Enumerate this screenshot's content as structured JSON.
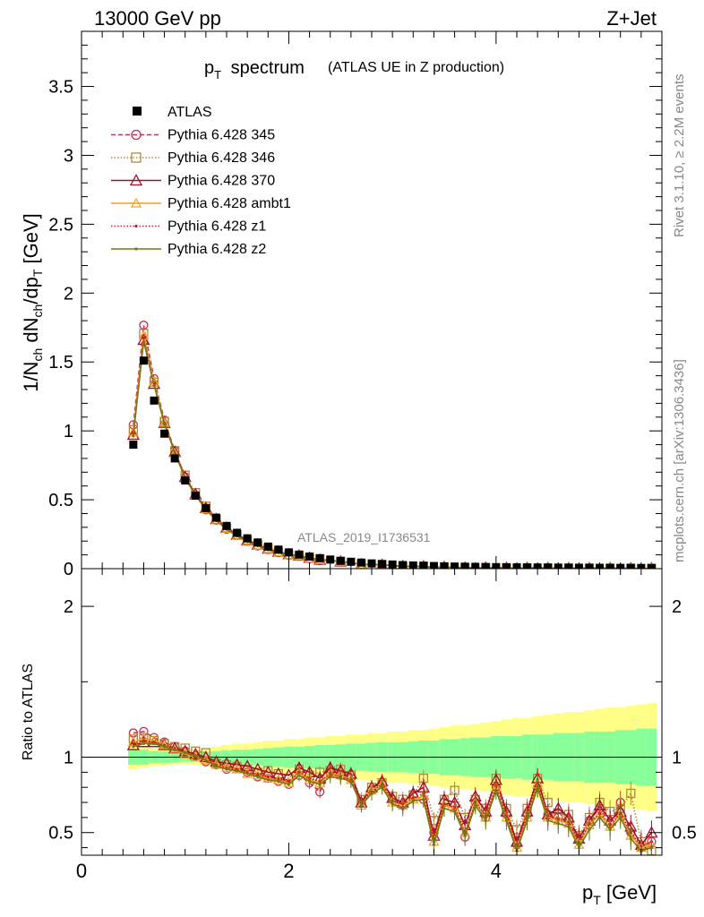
{
  "header": {
    "left": "13000 GeV pp",
    "right": "Z+Jet"
  },
  "side": {
    "top": "Rivet 3.1.10, ≥ 2.2M events",
    "bottom": "mcplots.cern.ch [arXiv:1306.3436]"
  },
  "chart_data": {
    "type": "line",
    "title": "p_T spectrum",
    "title_sub": "(ATLAS UE in Z production)",
    "watermark": "ATLAS_2019_I1736531",
    "xlabel": "p_T [GeV]",
    "ylabel": "1/N_ch dN_ch/dp_T [GeV]",
    "ratio_ylabel": "Ratio to ATLAS",
    "xlim": [
      0,
      5.6
    ],
    "ylim": [
      0,
      3.9
    ],
    "ratio_ylim": [
      0.35,
      2.25
    ],
    "x_ticks": [
      "0",
      "2",
      "4"
    ],
    "y_ticks": [
      "0",
      "0.5",
      "1",
      "1.5",
      "2",
      "2.5",
      "3",
      "3.5"
    ],
    "ratio_ticks": [
      "0.5",
      "1",
      "2"
    ],
    "x": [
      0.5,
      0.6,
      0.7,
      0.8,
      0.9,
      1.0,
      1.1,
      1.2,
      1.3,
      1.4,
      1.5,
      1.6,
      1.7,
      1.8,
      1.9,
      2.0,
      2.1,
      2.2,
      2.3,
      2.4,
      2.5,
      2.6,
      2.7,
      2.8,
      2.9,
      3.0,
      3.1,
      3.2,
      3.3,
      3.4,
      3.5,
      3.6,
      3.7,
      3.8,
      3.9,
      4.0,
      4.1,
      4.2,
      4.3,
      4.4,
      4.5,
      4.6,
      4.7,
      4.8,
      4.9,
      5.0,
      5.1,
      5.2,
      5.3,
      5.4,
      5.5
    ],
    "data": {
      "name": "ATLAS",
      "values": [
        0.9,
        1.51,
        1.22,
        0.98,
        0.8,
        0.64,
        0.53,
        0.44,
        0.37,
        0.31,
        0.26,
        0.22,
        0.19,
        0.16,
        0.138,
        0.118,
        0.102,
        0.088,
        0.076,
        0.066,
        0.057,
        0.05,
        0.044,
        0.038,
        0.034,
        0.03,
        0.026,
        0.023,
        0.021,
        0.019,
        0.017,
        0.015,
        0.014,
        0.013,
        0.012,
        0.011,
        0.01,
        0.0095,
        0.009,
        0.0085,
        0.008,
        0.0076,
        0.0072,
        0.0068,
        0.0065,
        0.0062,
        0.0059,
        0.0056,
        0.0053,
        0.005,
        0.0048
      ],
      "ratio_band_inner": [
        0.05,
        0.05,
        0.04,
        0.04,
        0.035,
        0.03,
        0.03,
        0.035,
        0.04,
        0.045,
        0.05,
        0.05,
        0.055,
        0.06,
        0.065,
        0.07,
        0.07,
        0.075,
        0.08,
        0.08,
        0.085,
        0.09,
        0.09,
        0.095,
        0.1,
        0.1,
        0.1,
        0.105,
        0.11,
        0.11,
        0.12,
        0.12,
        0.125,
        0.13,
        0.13,
        0.14,
        0.14,
        0.14,
        0.15,
        0.15,
        0.15,
        0.16,
        0.16,
        0.16,
        0.17,
        0.17,
        0.17,
        0.18,
        0.18,
        0.19,
        0.19
      ],
      "ratio_band_outer": [
        0.08,
        0.07,
        0.06,
        0.055,
        0.05,
        0.045,
        0.05,
        0.06,
        0.07,
        0.08,
        0.09,
        0.09,
        0.1,
        0.11,
        0.11,
        0.12,
        0.12,
        0.13,
        0.13,
        0.14,
        0.14,
        0.15,
        0.15,
        0.16,
        0.16,
        0.17,
        0.17,
        0.18,
        0.18,
        0.19,
        0.2,
        0.21,
        0.21,
        0.22,
        0.23,
        0.24,
        0.25,
        0.26,
        0.26,
        0.27,
        0.28,
        0.29,
        0.3,
        0.3,
        0.31,
        0.32,
        0.33,
        0.33,
        0.34,
        0.35,
        0.36
      ]
    },
    "series": [
      {
        "name": "Pythia 6.428 345",
        "color": "#c03050",
        "dash": "5,3",
        "marker": "circle",
        "ratio": [
          1.16,
          1.17,
          1.13,
          1.1,
          1.07,
          1.04,
          1.01,
          0.97,
          0.95,
          0.92,
          0.93,
          0.9,
          0.87,
          0.86,
          0.84,
          0.82,
          0.88,
          0.83,
          0.77,
          0.9,
          0.88,
          0.86,
          0.7,
          0.78,
          0.82,
          0.72,
          0.68,
          0.74,
          0.72,
          0.5,
          0.7,
          0.68,
          0.47,
          0.7,
          0.6,
          0.8,
          0.62,
          0.42,
          0.62,
          0.8,
          0.62,
          0.6,
          0.58,
          0.45,
          0.58,
          0.66,
          0.56,
          0.7,
          0.5,
          0.4,
          0.44
        ]
      },
      {
        "name": "Pythia 6.428 346",
        "color": "#b08a3a",
        "dash": "1.5,2",
        "marker": "square",
        "ratio": [
          1.12,
          1.13,
          1.11,
          1.09,
          1.07,
          1.06,
          1.04,
          1.03,
          0.96,
          0.95,
          0.94,
          0.92,
          0.9,
          0.91,
          0.89,
          0.86,
          0.92,
          0.88,
          0.9,
          0.91,
          0.92,
          0.88,
          0.72,
          0.8,
          0.83,
          0.74,
          0.72,
          0.75,
          0.86,
          0.58,
          0.72,
          0.78,
          0.6,
          0.72,
          0.66,
          0.86,
          0.66,
          0.52,
          0.66,
          0.86,
          0.7,
          0.62,
          0.62,
          0.48,
          0.6,
          0.7,
          0.64,
          0.66,
          0.76,
          0.44,
          0.38
        ]
      },
      {
        "name": "Pythia 6.428 370",
        "color": "#a01028",
        "dash": "",
        "marker": "triangle",
        "ratio": [
          1.08,
          1.1,
          1.1,
          1.08,
          1.06,
          1.04,
          1.02,
          1.0,
          0.97,
          0.96,
          0.95,
          0.94,
          0.92,
          0.9,
          0.89,
          0.88,
          0.93,
          0.9,
          0.86,
          0.93,
          0.91,
          0.89,
          0.7,
          0.8,
          0.84,
          0.73,
          0.7,
          0.76,
          0.8,
          0.48,
          0.72,
          0.7,
          0.55,
          0.74,
          0.64,
          0.85,
          0.64,
          0.44,
          0.64,
          0.86,
          0.62,
          0.66,
          0.6,
          0.46,
          0.58,
          0.68,
          0.58,
          0.64,
          0.54,
          0.42,
          0.5
        ]
      },
      {
        "name": "Pythia 6.428 ambt1",
        "color": "#f0a020",
        "dash": "",
        "marker": "triangle-small",
        "ratio": [
          1.1,
          1.12,
          1.11,
          1.08,
          1.05,
          1.02,
          1.0,
          0.98,
          0.95,
          0.93,
          0.92,
          0.89,
          0.88,
          0.86,
          0.85,
          0.83,
          0.9,
          0.85,
          0.83,
          0.89,
          0.88,
          0.85,
          0.68,
          0.78,
          0.82,
          0.7,
          0.68,
          0.72,
          0.74,
          0.44,
          0.68,
          0.66,
          0.5,
          0.7,
          0.6,
          0.8,
          0.6,
          0.4,
          0.6,
          0.82,
          0.6,
          0.58,
          0.56,
          0.42,
          0.55,
          0.62,
          0.54,
          0.62,
          0.48,
          0.4,
          0.42
        ]
      },
      {
        "name": "Pythia 6.428 z1",
        "color": "#d02020",
        "dash": "1.5,2",
        "marker": "dot",
        "ratio": [
          1.09,
          1.11,
          1.1,
          1.08,
          1.05,
          1.03,
          1.0,
          0.98,
          0.95,
          0.93,
          0.92,
          0.9,
          0.88,
          0.87,
          0.85,
          0.84,
          0.9,
          0.86,
          0.84,
          0.89,
          0.87,
          0.85,
          0.7,
          0.77,
          0.82,
          0.71,
          0.69,
          0.73,
          0.76,
          0.46,
          0.69,
          0.67,
          0.5,
          0.7,
          0.61,
          0.81,
          0.61,
          0.42,
          0.61,
          0.83,
          0.61,
          0.59,
          0.57,
          0.43,
          0.56,
          0.63,
          0.55,
          0.63,
          0.5,
          0.41,
          0.44
        ]
      },
      {
        "name": "Pythia 6.428 z2",
        "color": "#707a10",
        "dash": "",
        "marker": "dot",
        "ratio": [
          1.07,
          1.09,
          1.09,
          1.07,
          1.05,
          1.03,
          1.01,
          0.98,
          0.94,
          0.92,
          0.91,
          0.89,
          0.87,
          0.85,
          0.84,
          0.82,
          0.88,
          0.84,
          0.82,
          0.87,
          0.86,
          0.84,
          0.68,
          0.76,
          0.8,
          0.69,
          0.66,
          0.71,
          0.72,
          0.42,
          0.66,
          0.64,
          0.48,
          0.68,
          0.58,
          0.78,
          0.58,
          0.38,
          0.58,
          0.8,
          0.58,
          0.56,
          0.54,
          0.4,
          0.52,
          0.6,
          0.52,
          0.6,
          0.46,
          0.38,
          0.4
        ]
      }
    ]
  }
}
